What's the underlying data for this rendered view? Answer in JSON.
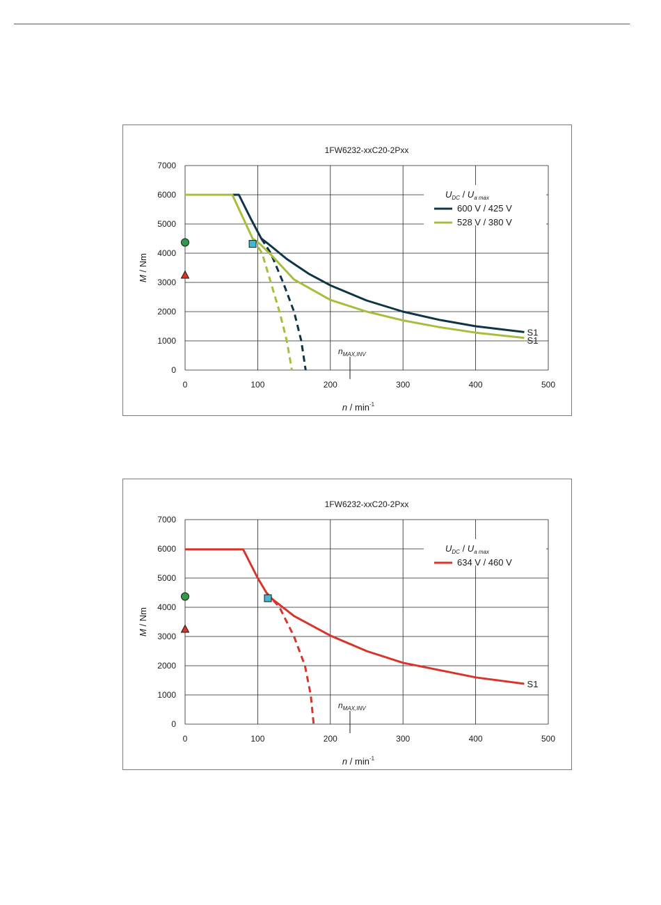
{
  "chart_data": [
    {
      "type": "line",
      "title": "1FW6232-xxC20-2Pxx",
      "ylabel_symbol": "M",
      "ylabel_unit": " / Nm",
      "xlabel_symbol": "n",
      "xlabel_unit": " / min",
      "xlabel_exp": "-1",
      "xlim": [
        0,
        500
      ],
      "ylim": [
        0,
        7000
      ],
      "x_ticks": [
        "0",
        "100",
        "200",
        "300",
        "400",
        "500"
      ],
      "y_ticks": [
        "0",
        "1000",
        "2000",
        "3000",
        "4000",
        "5000",
        "6000",
        "7000"
      ],
      "grid": true,
      "legend_position": "top-right",
      "legend_title": {
        "u1": "U",
        "s1": "DC",
        "sep": " / ",
        "u2": "U",
        "s2": "a max"
      },
      "nmax_label": {
        "base": "n",
        "sub": "MAX,INV"
      },
      "nmax_x": 227,
      "markers": {
        "circle": {
          "x": 0,
          "y": 4370,
          "color": "#2e9a4a"
        },
        "triangle": {
          "x": 0,
          "y": 3250,
          "color": "#d9342b"
        },
        "square": {
          "x": 93,
          "y": 4320,
          "color": "#45b6d1"
        }
      },
      "series": [
        {
          "name": "600 V / 425 V",
          "color": "#0d3447",
          "end_label": "S1",
          "solid": [
            [
              0,
              6000
            ],
            [
              74,
              6000
            ],
            [
              90,
              5200
            ],
            [
              105,
              4500
            ],
            [
              115,
              4310
            ],
            [
              140,
              3800
            ],
            [
              170,
              3300
            ],
            [
              200,
              2900
            ],
            [
              250,
              2380
            ],
            [
              300,
              2000
            ],
            [
              350,
              1720
            ],
            [
              400,
              1500
            ],
            [
              467,
              1300
            ]
          ],
          "dashed": [
            [
              105,
              4500
            ],
            [
              118,
              4000
            ],
            [
              135,
              3000
            ],
            [
              150,
              2000
            ],
            [
              160,
              1000
            ],
            [
              166,
              0
            ]
          ]
        },
        {
          "name": "528 V / 380 V",
          "color": "#a5bf3c",
          "end_label": "S1",
          "solid": [
            [
              0,
              6000
            ],
            [
              65,
              6000
            ],
            [
              80,
              5200
            ],
            [
              93,
              4500
            ],
            [
              103,
              4320
            ],
            [
              120,
              3900
            ],
            [
              150,
              3100
            ],
            [
              200,
              2400
            ],
            [
              250,
              2000
            ],
            [
              300,
              1700
            ],
            [
              350,
              1470
            ],
            [
              400,
              1280
            ],
            [
              467,
              1100
            ]
          ],
          "dashed": [
            [
              93,
              4500
            ],
            [
              106,
              4000
            ],
            [
              118,
              3000
            ],
            [
              130,
              2000
            ],
            [
              140,
              1000
            ],
            [
              147,
              0
            ]
          ]
        }
      ]
    },
    {
      "type": "line",
      "title": "1FW6232-xxC20-2Pxx",
      "ylabel_symbol": "M",
      "ylabel_unit": " / Nm",
      "xlabel_symbol": "n",
      "xlabel_unit": " / min",
      "xlabel_exp": "-1",
      "xlim": [
        0,
        500
      ],
      "ylim": [
        0,
        7000
      ],
      "x_ticks": [
        "0",
        "100",
        "200",
        "300",
        "400",
        "500"
      ],
      "y_ticks": [
        "0",
        "1000",
        "2000",
        "3000",
        "4000",
        "5000",
        "6000",
        "7000"
      ],
      "grid": true,
      "legend_position": "top-right",
      "legend_title": {
        "u1": "U",
        "s1": "DC",
        "sep": " / ",
        "u2": "U",
        "s2": "a max"
      },
      "nmax_label": {
        "base": "n",
        "sub": "MAX,INV"
      },
      "nmax_x": 227,
      "markers": {
        "circle": {
          "x": 0,
          "y": 4370,
          "color": "#2e9a4a"
        },
        "triangle": {
          "x": 0,
          "y": 3250,
          "color": "#d9342b"
        },
        "square": {
          "x": 114,
          "y": 4310,
          "color": "#45b6d1"
        }
      },
      "series": [
        {
          "name": "634 V / 460 V",
          "color": "#d9342b",
          "end_label": "S1",
          "solid": [
            [
              0,
              5980
            ],
            [
              80,
              5980
            ],
            [
              100,
              5000
            ],
            [
              112,
              4500
            ],
            [
              120,
              4280
            ],
            [
              150,
              3700
            ],
            [
              200,
              3030
            ],
            [
              250,
              2500
            ],
            [
              300,
              2100
            ],
            [
              350,
              1850
            ],
            [
              400,
              1600
            ],
            [
              467,
              1380
            ]
          ],
          "dashed": [
            [
              112,
              4500
            ],
            [
              130,
              4000
            ],
            [
              150,
              3000
            ],
            [
              165,
              2000
            ],
            [
              173,
              1000
            ],
            [
              177,
              0
            ]
          ]
        }
      ]
    }
  ]
}
